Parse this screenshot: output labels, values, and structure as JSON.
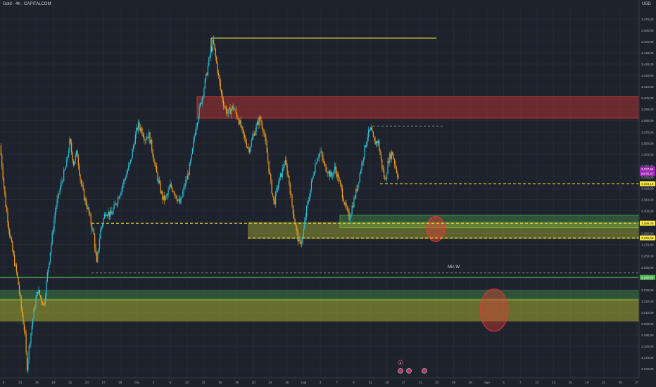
{
  "header": {
    "title": "Gold · 4h · CAPITALCOM",
    "currency": "USD"
  },
  "colors": {
    "background": "#1e222d",
    "up": "#26c6da",
    "down": "#f7a21b",
    "grid": "#262a35",
    "axis_text": "#b2b5be",
    "resistance_zone": "#e53935",
    "support_zone_green": "#4caf50",
    "support_zone_yellow": "#c0ca33",
    "level_line": "#ffeb3b",
    "dashed_gray": "#787b86",
    "price_badge": "#ffeb3b",
    "current_badge": "#9c27b0",
    "green_badge": "#4caf50"
  },
  "chart_data": {
    "type": "candlestick",
    "ylim": [
      3152,
      3478
    ],
    "y_ticks": [
      "3.470,00",
      "3.460,00",
      "3.450,00",
      "3.440,00",
      "3.430,00",
      "3.420,00",
      "3.410,00",
      "3.400,00",
      "3.390,00",
      "3.380,00",
      "3.370,00",
      "3.360,00",
      "3.350,00",
      "3.340,00",
      "3.330,00",
      "3.320,00",
      "3.310,00",
      "3.300,00",
      "3.290,00",
      "3.280,00",
      "3.270,00",
      "3.260,00",
      "3.250,00",
      "3.240,00",
      "3.230,00",
      "3.220,00",
      "3.210,00",
      "3.200,00",
      "3.190,00",
      "3.180,00",
      "3.170,00",
      "3.160,00"
    ],
    "x_ticks": [
      "9",
      "13",
      "15",
      "19",
      "21",
      "23",
      "27",
      "29",
      "Giu",
      "4",
      "6",
      "10",
      "12",
      "16",
      "18",
      "20",
      "24",
      "26",
      "Lug",
      "3",
      "7",
      "9",
      "11",
      "15",
      "17",
      "21",
      "23",
      "25",
      "29",
      "Ago",
      "5",
      "7",
      "11",
      "13",
      "15",
      "19",
      "21",
      "25",
      "27"
    ],
    "price_path": [
      [
        0,
        3358
      ],
      [
        0.8,
        3332
      ],
      [
        1.5,
        3308
      ],
      [
        2.6,
        3282
      ],
      [
        3.6,
        3262
      ],
      [
        5,
        3238
      ],
      [
        6,
        3212
      ],
      [
        7,
        3190
      ],
      [
        7.5,
        3160
      ],
      [
        8.2,
        3182
      ],
      [
        9.5,
        3212
      ],
      [
        10.5,
        3230
      ],
      [
        11.5,
        3222
      ],
      [
        12.3,
        3216
      ],
      [
        13.3,
        3246
      ],
      [
        14.5,
        3276
      ],
      [
        15.5,
        3302
      ],
      [
        16.5,
        3316
      ],
      [
        17.4,
        3328
      ],
      [
        18.5,
        3340
      ],
      [
        19.5,
        3362
      ],
      [
        20.5,
        3342
      ],
      [
        21.5,
        3352
      ],
      [
        22.5,
        3326
      ],
      [
        23.5,
        3312
      ],
      [
        24.5,
        3302
      ],
      [
        25.2,
        3292
      ],
      [
        26.2,
        3278
      ],
      [
        27,
        3252
      ],
      [
        28,
        3282
      ],
      [
        29.5,
        3300
      ],
      [
        31,
        3296
      ],
      [
        33,
        3312
      ],
      [
        35,
        3330
      ],
      [
        36.5,
        3344
      ],
      [
        37.5,
        3362
      ],
      [
        38.5,
        3376
      ],
      [
        39.5,
        3372
      ],
      [
        40.5,
        3364
      ],
      [
        41.5,
        3368
      ],
      [
        42.5,
        3354
      ],
      [
        43.5,
        3336
      ],
      [
        44.5,
        3322
      ],
      [
        45.5,
        3310
      ],
      [
        46.5,
        3312
      ],
      [
        47.5,
        3322
      ],
      [
        48.5,
        3318
      ],
      [
        49.3,
        3312
      ],
      [
        50.3,
        3306
      ],
      [
        51.5,
        3322
      ],
      [
        52.5,
        3332
      ],
      [
        53.5,
        3348
      ],
      [
        54.5,
        3372
      ],
      [
        55.5,
        3388
      ],
      [
        56.5,
        3402
      ],
      [
        57.5,
        3418
      ],
      [
        58.5,
        3436
      ],
      [
        59.5,
        3450
      ],
      [
        60.5,
        3430
      ],
      [
        61.5,
        3408
      ],
      [
        62.5,
        3394
      ],
      [
        63.5,
        3386
      ],
      [
        65,
        3392
      ],
      [
        66.5,
        3382
      ],
      [
        68,
        3366
      ],
      [
        69.5,
        3354
      ],
      [
        71,
        3370
      ],
      [
        72.5,
        3382
      ],
      [
        73.5,
        3372
      ],
      [
        74.5,
        3352
      ],
      [
        75.5,
        3326
      ],
      [
        76.5,
        3306
      ],
      [
        77.5,
        3322
      ],
      [
        78.5,
        3332
      ],
      [
        79.5,
        3344
      ],
      [
        80.5,
        3330
      ],
      [
        81.5,
        3306
      ],
      [
        82.5,
        3286
      ],
      [
        83.5,
        3270
      ],
      [
        84.5,
        3276
      ],
      [
        85.5,
        3300
      ],
      [
        86.5,
        3316
      ],
      [
        87.5,
        3334
      ],
      [
        88.5,
        3348
      ],
      [
        89.5,
        3352
      ],
      [
        90.5,
        3340
      ],
      [
        91.5,
        3336
      ],
      [
        92.5,
        3330
      ],
      [
        93.5,
        3338
      ],
      [
        94.5,
        3328
      ],
      [
        95.5,
        3316
      ],
      [
        96.5,
        3302
      ],
      [
        97.5,
        3294
      ],
      [
        98.5,
        3306
      ],
      [
        99.5,
        3318
      ],
      [
        100.5,
        3334
      ],
      [
        101.5,
        3350
      ],
      [
        102.5,
        3366
      ],
      [
        103.5,
        3372
      ],
      [
        104.5,
        3360
      ],
      [
        105.5,
        3362
      ],
      [
        106.5,
        3342
      ],
      [
        107.5,
        3326
      ],
      [
        108.5,
        3346
      ],
      [
        109.5,
        3352
      ],
      [
        110.5,
        3338
      ],
      [
        111.5,
        3326
      ]
    ],
    "levels": {
      "top_line": 3453,
      "resistance_zone": [
        3382,
        3401
      ],
      "dashed_high": 3375,
      "dashed_current": 3324,
      "green_zone": [
        3285,
        3296
      ],
      "yellow_zone": [
        3275,
        3290
      ],
      "dashed_289": 3289,
      "dashed_276": 3276,
      "dashed_min_w": 3245,
      "solid_green_line": 3241,
      "lower_green_zone": [
        3220,
        3230
      ],
      "lower_yellow_zone": [
        3202,
        3222
      ]
    },
    "badges": [
      {
        "text": "3.337,54",
        "value": 3337,
        "color": "#9c27b0"
      },
      {
        "text": "00:35:47",
        "value": 3333,
        "color": "#9c27b0"
      },
      {
        "text": "3.323,12",
        "value": 3324,
        "color": "#ffeb3b"
      },
      {
        "text": "3.289,43",
        "value": 3289,
        "color": "#ffeb3b"
      },
      {
        "text": "3.276,58",
        "value": 3276,
        "color": "#ffeb3b"
      },
      {
        "text": "3.240,93",
        "value": 3241,
        "color": "#4caf50"
      }
    ],
    "annotations": [
      {
        "text": "Min W",
        "value": 3248
      }
    ],
    "events": [
      "0"
    ]
  }
}
